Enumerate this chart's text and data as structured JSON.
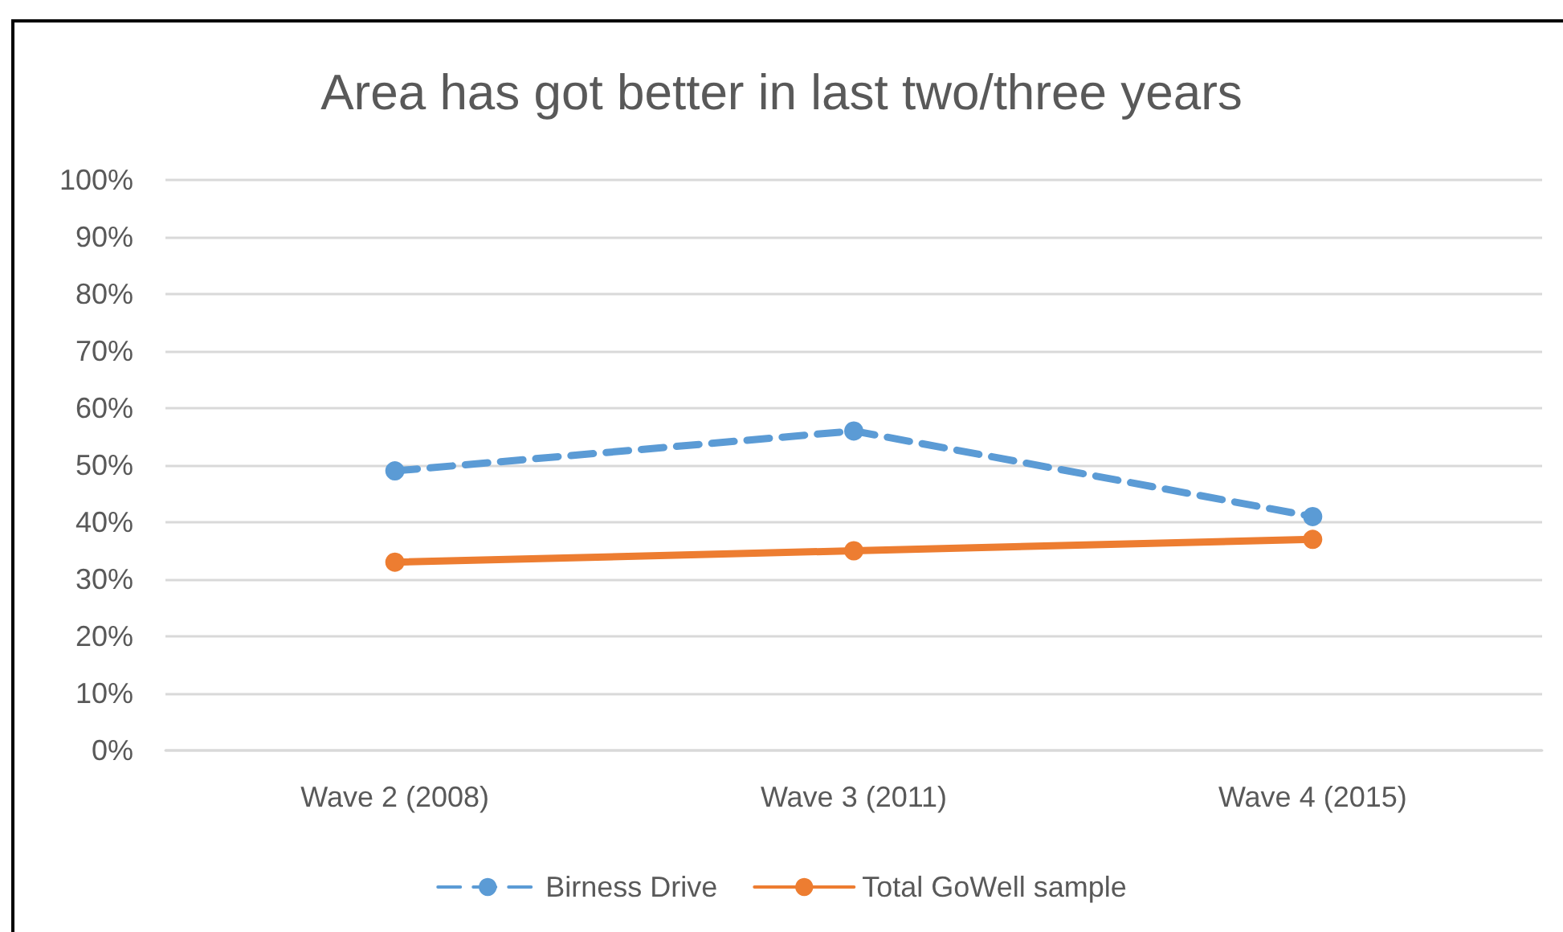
{
  "chart_data": {
    "type": "line",
    "title": "Area has got better in last two/three years",
    "categories": [
      "Wave 2 (2008)",
      "Wave 3 (2011)",
      "Wave 4 (2015)"
    ],
    "series": [
      {
        "name": "Birness Drive",
        "color": "#5b9bd5",
        "values": [
          49,
          56,
          41
        ],
        "line_style": "dashed"
      },
      {
        "name": "Total GoWell sample",
        "color": "#ed7d31",
        "values": [
          33,
          35,
          37
        ],
        "line_style": "solid"
      }
    ],
    "ylim": [
      0,
      100
    ],
    "yticks": [
      {
        "value": 0,
        "label": "0%"
      },
      {
        "value": 10,
        "label": "10%"
      },
      {
        "value": 20,
        "label": "20%"
      },
      {
        "value": 30,
        "label": "30%"
      },
      {
        "value": 40,
        "label": "40%"
      },
      {
        "value": 50,
        "label": "50%"
      },
      {
        "value": 60,
        "label": "60%"
      },
      {
        "value": 70,
        "label": "70%"
      },
      {
        "value": 80,
        "label": "80%"
      },
      {
        "value": 90,
        "label": "90%"
      },
      {
        "value": 100,
        "label": "100%"
      }
    ],
    "grid": "y",
    "legend": "bottom",
    "marker": "circle"
  }
}
